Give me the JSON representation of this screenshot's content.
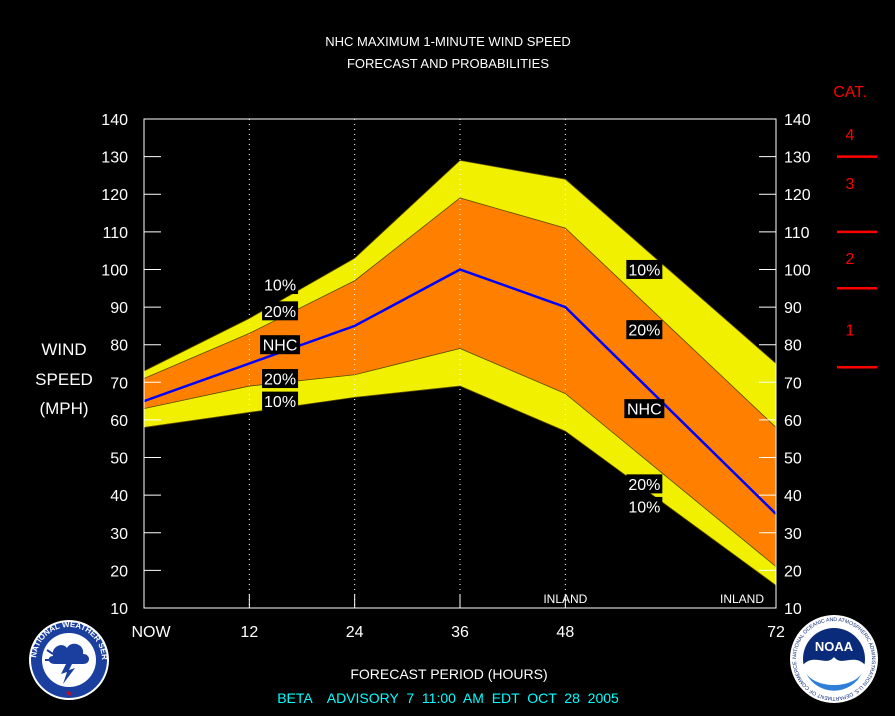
{
  "chart_data": {
    "type": "area",
    "title_line1": "NHC MAXIMUM 1-MINUTE WIND SPEED",
    "title_line2": "FORECAST AND PROBABILITIES",
    "ylabel_lines": [
      "WIND",
      "SPEED",
      "(MPH)"
    ],
    "xlabel": "FORECAST PERIOD (HOURS)",
    "footer": "BETA    ADVISORY  7  11:00  AM  EDT  OCT  28  2005",
    "xlim": [
      0,
      72
    ],
    "ylim": [
      10,
      140
    ],
    "y_ticks": [
      10,
      20,
      30,
      40,
      50,
      60,
      70,
      80,
      90,
      100,
      110,
      120,
      130,
      140
    ],
    "x_ticks": [
      {
        "x": 0,
        "label": "NOW"
      },
      {
        "x": 12,
        "label": "12"
      },
      {
        "x": 24,
        "label": "24"
      },
      {
        "x": 36,
        "label": "36"
      },
      {
        "x": 48,
        "label": "48"
      },
      {
        "x": 72,
        "label": "72"
      }
    ],
    "inland_markers": [
      {
        "x": 48,
        "label": "INLAND"
      },
      {
        "x": 72,
        "label": "INLAND"
      }
    ],
    "x": [
      0,
      12,
      24,
      36,
      48,
      72
    ],
    "series": [
      {
        "name": "10%",
        "values": [
          73,
          87,
          103,
          129,
          124,
          75
        ]
      },
      {
        "name": "20%",
        "values": [
          71,
          83,
          97,
          119,
          111,
          58
        ]
      },
      {
        "name": "NHC",
        "values": [
          65,
          75,
          85,
          100,
          90,
          35
        ]
      },
      {
        "name": "20%",
        "values": [
          63,
          69,
          72,
          79,
          67,
          21
        ]
      },
      {
        "name": "10%",
        "values": [
          58,
          62,
          66,
          69,
          57,
          16
        ]
      }
    ],
    "band_labels": [
      {
        "text": "10%",
        "x": 15.5,
        "y": 96
      },
      {
        "text": "20%",
        "x": 15.5,
        "y": 89
      },
      {
        "text": "NHC",
        "x": 15.5,
        "y": 80
      },
      {
        "text": "20%",
        "x": 15.5,
        "y": 71
      },
      {
        "text": "10%",
        "x": 15.5,
        "y": 65
      },
      {
        "text": "10%",
        "x": 57,
        "y": 100
      },
      {
        "text": "20%",
        "x": 57,
        "y": 84
      },
      {
        "text": "NHC",
        "x": 57,
        "y": 63
      },
      {
        "text": "20%",
        "x": 57,
        "y": 43
      },
      {
        "text": "10%",
        "x": 57,
        "y": 37
      }
    ],
    "categories_header": "CAT.",
    "saffir_simpson": [
      {
        "label": "4",
        "y": 136
      },
      {
        "label": "3",
        "y": 123
      },
      {
        "label": "2",
        "y": 103
      },
      {
        "label": "1",
        "y": 84
      }
    ],
    "category_thresholds": [
      130,
      110,
      95,
      74
    ],
    "colors": {
      "outer_band": "#f0f000",
      "inner_band": "#ff8000",
      "nhc_line": "#0000ff",
      "category": "#ff0000",
      "footer": "#00ffff",
      "text": "#ffffff",
      "background": "#000000"
    }
  },
  "logos": {
    "nws": {
      "icon": "nws-logo",
      "text": "NATIONAL WEATHER SERVICE"
    },
    "noaa": {
      "icon": "noaa-logo",
      "text": "NOAA",
      "ring_text": "NATIONAL OCEANIC AND ATMOSPHERIC ADMINISTRATION U.S. DEPARTMENT OF COMMERCE"
    }
  }
}
